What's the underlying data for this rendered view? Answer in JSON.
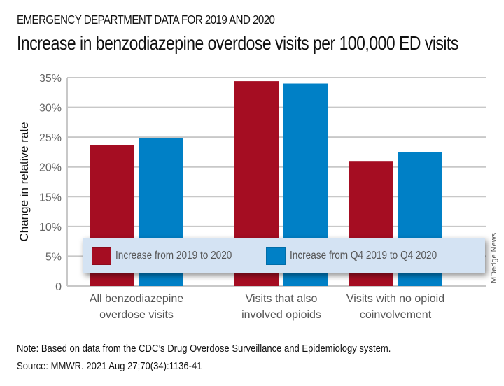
{
  "header": {
    "kicker": "EMERGENCY DEPARTMENT DATA FOR 2019 AND 2020",
    "title": "Increase in benzodiazepine overdose visits per 100,000 ED visits"
  },
  "footer": {
    "note_label": "Note:",
    "note_text": " Based on data from the CDC’s Drug Overdose Surveillance and Epidemiology system.",
    "source_label": "Source:",
    "source_text": " MMWR. 2021 Aug 27;70(34):1136-41",
    "credit": "MDedge News"
  },
  "colors": {
    "series_2019_2020": "#a50d22",
    "series_q4": "#0080c6",
    "grid": "#c8c8c8",
    "legend_bg": "#d4e3f3",
    "tick_text": "#666666"
  },
  "chart_data": {
    "type": "bar",
    "title": "Increase in benzodiazepine overdose visits per 100,000 ED visits",
    "xlabel": "",
    "ylabel": "Change in relative rate",
    "ylim": [
      0,
      35
    ],
    "yticks": [
      0,
      5,
      10,
      15,
      20,
      25,
      30,
      35
    ],
    "ytick_labels": [
      "0",
      "5%",
      "10%",
      "15%",
      "20%",
      "25%",
      "30%",
      "35%"
    ],
    "grid": true,
    "legend_position": "bottom-inside",
    "categories": [
      [
        "All benzodiazepine",
        "overdose visits"
      ],
      [
        "Visits that also",
        "involved opioids"
      ],
      [
        "Visits with no opioid",
        "coinvolvement"
      ]
    ],
    "series": [
      {
        "name": "Increase from 2019 to 2020",
        "color": "#a50d22",
        "values": [
          23.7,
          34.4,
          21.0
        ]
      },
      {
        "name": "Increase from Q4 2019 to Q4 2020",
        "color": "#0080c6",
        "values": [
          24.9,
          34.0,
          22.5
        ]
      }
    ]
  }
}
